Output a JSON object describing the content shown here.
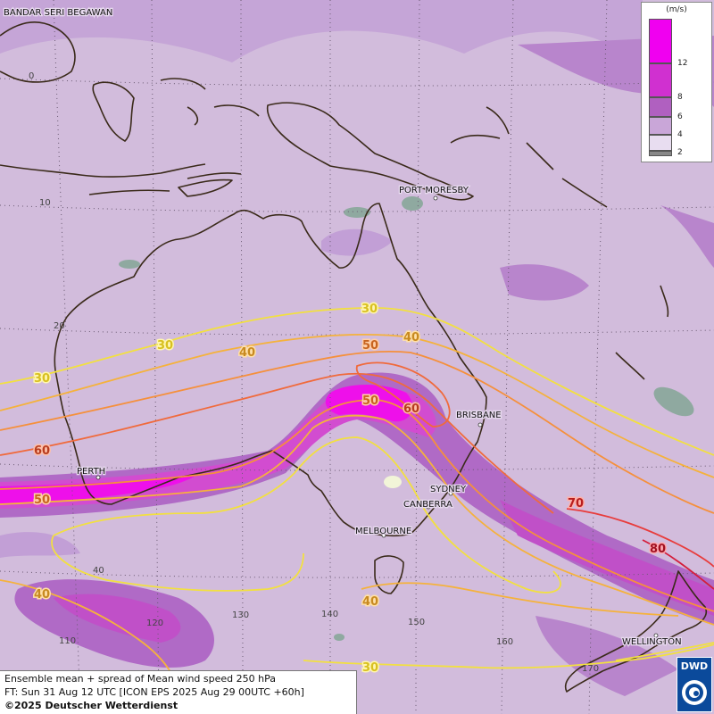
{
  "legend": {
    "unit": "(m/s)",
    "ticks": [
      "12",
      "8",
      "6",
      "4",
      "2"
    ],
    "colors": [
      "#f000f0",
      "#d030d0",
      "#b060c0",
      "#c9a6d8",
      "#e8ddf0"
    ]
  },
  "cities": {
    "bandar": "BANDAR SERI BEGAWAN",
    "port_moresby": "PORT MORESBY",
    "perth": "PERTH",
    "brisbane": "BRISBANE",
    "sydney": "SYDNEY",
    "canberra": "CANBERRA",
    "melbourne": "MELBOURNE",
    "wellington": "WELLINGTON"
  },
  "grid_labels": {
    "lat_0": "0",
    "lat_10": "10",
    "lat_20": "20",
    "lat_40": "40",
    "lon_110": "110",
    "lon_120": "120",
    "lon_130": "130",
    "lon_140": "140",
    "lon_150": "150",
    "lon_160": "160",
    "lon_170": "170"
  },
  "isotach_labels": {
    "l30_a": "30",
    "l30_b": "30",
    "l30_c": "30",
    "l30_d": "30",
    "l40_a": "40",
    "l40_b": "40",
    "l40_c": "40",
    "l40_d": "40",
    "l50_a": "50",
    "l50_b": "50",
    "l50_c": "50",
    "l60_a": "60",
    "l60_b": "60",
    "l70": "70",
    "l80": "80"
  },
  "isotach_colors": {
    "30": "#f2e040",
    "40": "#f5b23c",
    "50": "#f5903c",
    "60": "#f06a3c",
    "70": "#e83c3c",
    "80": "#d41e3c"
  },
  "footer": {
    "line1": "Ensemble mean + spread of Mean wind speed 250 hPa",
    "line2": "FT: Sun 31 Aug 12 UTC [ICON EPS 2025 Aug 29 00UTC +60h]",
    "line3": "©2025 Deutscher Wetterdienst"
  },
  "logo": {
    "text": "DWD"
  }
}
